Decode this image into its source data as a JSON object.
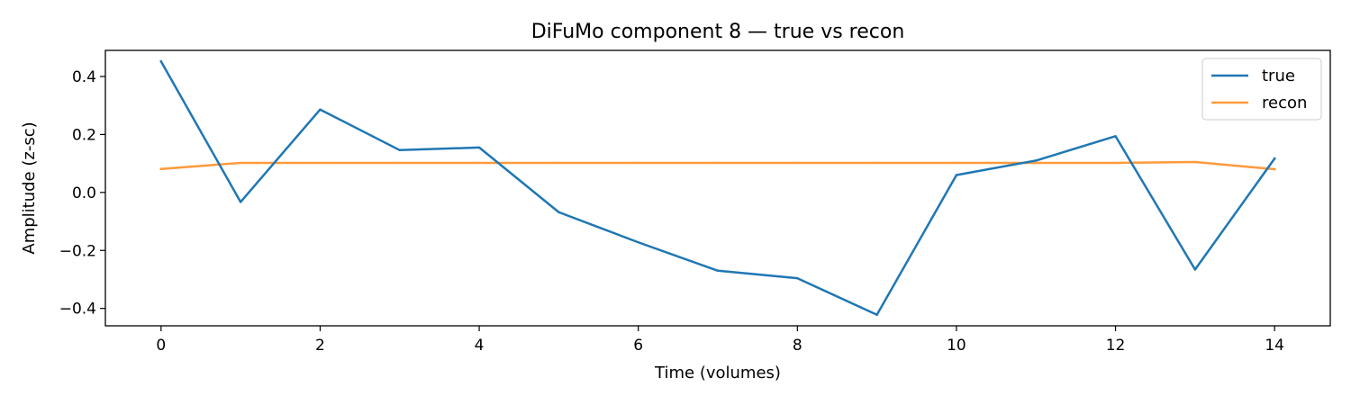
{
  "chart_data": {
    "type": "line",
    "title": "DiFuMo component 8 — true vs recon",
    "xlabel": "Time (volumes)",
    "ylabel": "Amplitude (z-sc)",
    "xlim": [
      -0.7,
      14.7
    ],
    "ylim": [
      -0.46,
      0.49
    ],
    "xticks": [
      0,
      2,
      4,
      6,
      8,
      10,
      12,
      14
    ],
    "xtick_labels": [
      "0",
      "2",
      "4",
      "6",
      "8",
      "10",
      "12",
      "14"
    ],
    "yticks": [
      -0.4,
      -0.2,
      0.0,
      0.2,
      0.4
    ],
    "ytick_labels": [
      "−0.4",
      "−0.2",
      "0.0",
      "0.2",
      "0.4"
    ],
    "grid": false,
    "legend_position": "top-right",
    "x": [
      0,
      1,
      2,
      3,
      4,
      5,
      6,
      7,
      8,
      9,
      10,
      11,
      12,
      13,
      14
    ],
    "series": [
      {
        "name": "true",
        "color": "#1f77b4",
        "values": [
          0.452,
          -0.033,
          0.286,
          0.146,
          0.155,
          -0.068,
          -0.172,
          -0.27,
          -0.296,
          -0.422,
          0.06,
          0.11,
          0.194,
          -0.266,
          0.117
        ]
      },
      {
        "name": "recon",
        "color": "#ff9a3c",
        "values": [
          0.081,
          0.102,
          0.102,
          0.102,
          0.102,
          0.102,
          0.102,
          0.102,
          0.102,
          0.102,
          0.102,
          0.102,
          0.102,
          0.105,
          0.08
        ]
      }
    ]
  }
}
